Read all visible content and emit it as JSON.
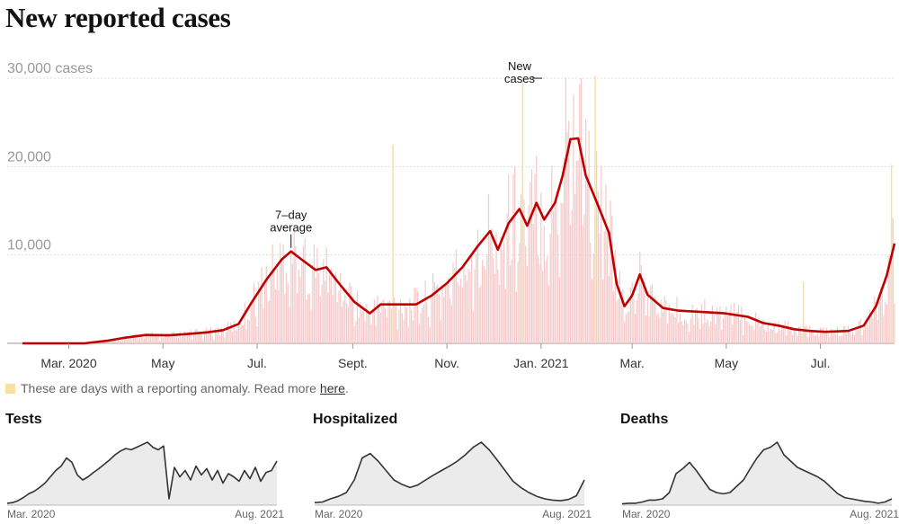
{
  "title": "New reported cases",
  "note": {
    "text": "These are days with a reporting anomaly. Read more",
    "link": "here",
    "suffix": "."
  },
  "colors": {
    "bar": "#f6c9c9",
    "line": "#c00000",
    "anomaly": "#f8e0a0",
    "grid": "#dddddd",
    "small_fill": "#ebebeb",
    "small_line": "#333333"
  },
  "chart_data": [
    {
      "type": "area",
      "title": "New reported cases",
      "ylabel": "cases",
      "ylim": [
        0,
        30000
      ],
      "yticks": [
        {
          "value": 10000,
          "label": "10,000"
        },
        {
          "value": 20000,
          "label": "20,000"
        },
        {
          "value": 30000,
          "label": "30,000 cases"
        }
      ],
      "xticks": [
        {
          "day": 30,
          "label": "Mar. 2020"
        },
        {
          "day": 91,
          "label": "May"
        },
        {
          "day": 152,
          "label": "Jul."
        },
        {
          "day": 214,
          "label": "Sept."
        },
        {
          "day": 275,
          "label": "Nov."
        },
        {
          "day": 336,
          "label": "Jan. 2021"
        },
        {
          "day": 395,
          "label": "Mar."
        },
        {
          "day": 456,
          "label": "May"
        },
        {
          "day": 517,
          "label": "Jul."
        }
      ],
      "x_range_days": [
        0,
        565
      ],
      "annotations": [
        {
          "lines": [
            "7–day",
            "average"
          ],
          "day": 174,
          "value": 10400
        },
        {
          "lines": [
            "New",
            "cases"
          ],
          "day": 332,
          "value": 30400
        }
      ],
      "series": [
        {
          "name": "7-day average",
          "points": [
            [
              0,
              0
            ],
            [
              20,
              0
            ],
            [
              40,
              0
            ],
            [
              55,
              300
            ],
            [
              65,
              600
            ],
            [
              80,
              950
            ],
            [
              95,
              900
            ],
            [
              110,
              1100
            ],
            [
              120,
              1250
            ],
            [
              130,
              1500
            ],
            [
              140,
              2200
            ],
            [
              148,
              4500
            ],
            [
              158,
              7200
            ],
            [
              168,
              9500
            ],
            [
              174,
              10400
            ],
            [
              180,
              9600
            ],
            [
              190,
              8300
            ],
            [
              197,
              8600
            ],
            [
              205,
              6800
            ],
            [
              215,
              4700
            ],
            [
              225,
              3400
            ],
            [
              232,
              4400
            ],
            [
              245,
              4400
            ],
            [
              255,
              4400
            ],
            [
              265,
              5400
            ],
            [
              275,
              6800
            ],
            [
              285,
              8600
            ],
            [
              295,
              11000
            ],
            [
              303,
              12700
            ],
            [
              308,
              10600
            ],
            [
              315,
              13600
            ],
            [
              322,
              15200
            ],
            [
              327,
              13300
            ],
            [
              333,
              15900
            ],
            [
              338,
              14000
            ],
            [
              345,
              15900
            ],
            [
              350,
              19000
            ],
            [
              355,
              23100
            ],
            [
              360,
              23200
            ],
            [
              365,
              19000
            ],
            [
              372,
              16000
            ],
            [
              380,
              12500
            ],
            [
              385,
              6700
            ],
            [
              390,
              4200
            ],
            [
              395,
              5400
            ],
            [
              400,
              7800
            ],
            [
              405,
              5500
            ],
            [
              415,
              4000
            ],
            [
              425,
              3700
            ],
            [
              435,
              3600
            ],
            [
              445,
              3500
            ],
            [
              455,
              3400
            ],
            [
              470,
              3000
            ],
            [
              480,
              2300
            ],
            [
              490,
              2000
            ],
            [
              500,
              1600
            ],
            [
              510,
              1400
            ],
            [
              520,
              1300
            ],
            [
              535,
              1400
            ],
            [
              545,
              2000
            ],
            [
              553,
              4200
            ],
            [
              560,
              7700
            ],
            [
              565,
              11300
            ]
          ]
        },
        {
          "name": "New cases (daily)",
          "representation": "bars around the 7-day average",
          "peaks": [
            {
              "day": 352,
              "value": 30000
            },
            {
              "day": 362,
              "value": 30000
            }
          ]
        },
        {
          "name": "Reporting anomalies",
          "days": [
            {
              "day": 240,
              "value": 22500
            },
            {
              "day": 324,
              "value": 30000
            },
            {
              "day": 371,
              "value": 30300
            },
            {
              "day": 506,
              "value": 7000
            },
            {
              "day": 563,
              "value": 20200
            }
          ]
        }
      ]
    },
    {
      "type": "area",
      "title": "Tests",
      "x_start": "Mar. 2020",
      "x_end": "Aug. 2021",
      "series": [
        {
          "name": "Tests",
          "values": [
            3,
            4,
            7,
            12,
            18,
            22,
            28,
            35,
            45,
            55,
            62,
            75,
            68,
            48,
            40,
            45,
            52,
            58,
            65,
            72,
            80,
            86,
            90,
            88,
            92,
            96,
            100,
            92,
            88,
            94,
            10,
            60,
            45,
            55,
            40,
            62,
            48,
            58,
            40,
            55,
            35,
            50,
            45,
            38,
            55,
            42,
            60,
            38,
            52,
            55,
            70
          ]
        }
      ]
    },
    {
      "type": "area",
      "title": "Hospitalized",
      "x_start": "Mar. 2020",
      "x_end": "Aug. 2021",
      "series": [
        {
          "name": "Hospitalized",
          "values": [
            4,
            5,
            10,
            14,
            20,
            40,
            75,
            82,
            70,
            55,
            40,
            33,
            28,
            32,
            40,
            48,
            55,
            62,
            70,
            80,
            92,
            100,
            88,
            72,
            55,
            38,
            28,
            20,
            14,
            10,
            8,
            7,
            9,
            15,
            40
          ]
        }
      ]
    },
    {
      "type": "area",
      "title": "Deaths",
      "x_start": "Mar. 2020",
      "x_end": "Aug. 2021",
      "series": [
        {
          "name": "Deaths",
          "values": [
            2,
            3,
            3,
            5,
            8,
            8,
            10,
            20,
            50,
            58,
            68,
            55,
            40,
            25,
            20,
            18,
            20,
            30,
            40,
            58,
            75,
            88,
            92,
            100,
            80,
            70,
            60,
            55,
            50,
            45,
            38,
            28,
            18,
            12,
            10,
            8,
            6,
            5,
            3,
            5,
            10
          ]
        }
      ]
    }
  ]
}
